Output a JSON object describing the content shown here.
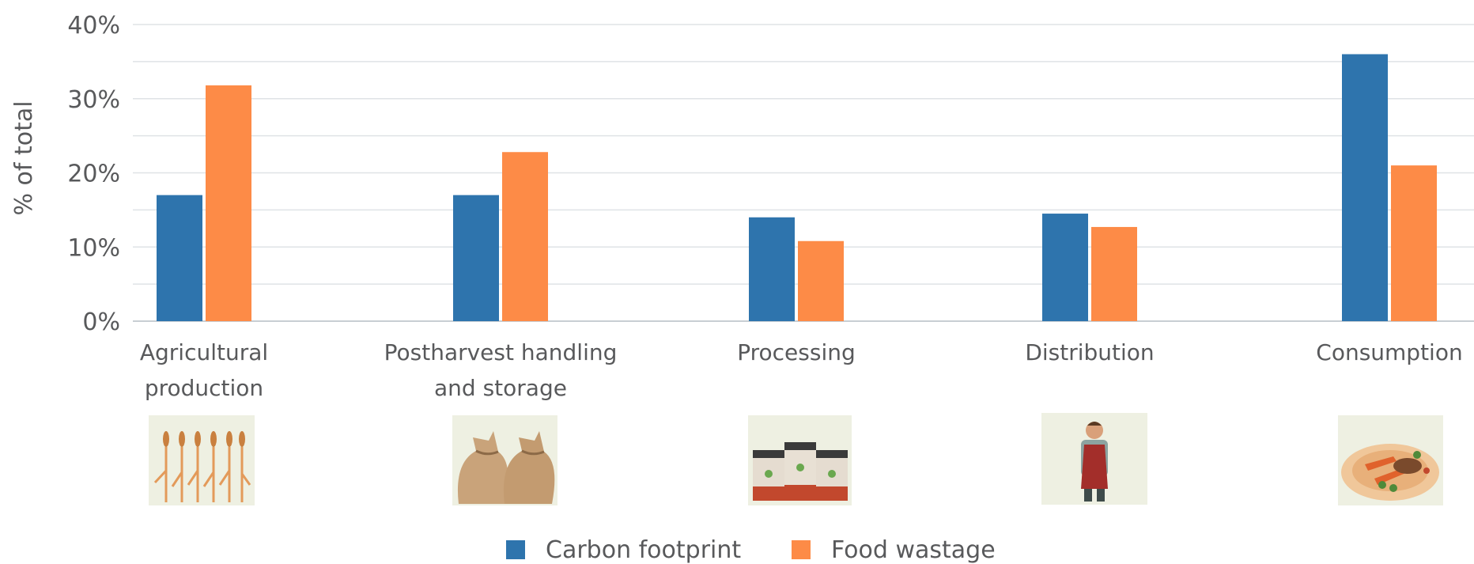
{
  "chart_data": {
    "type": "bar",
    "title": "",
    "xlabel": "",
    "ylabel": "% of total",
    "ylim": [
      0,
      40
    ],
    "yticks": [
      "0%",
      "10%",
      "20%",
      "30%",
      "40%"
    ],
    "ytick_values": [
      0,
      10,
      20,
      30,
      40
    ],
    "grid": true,
    "legend_position": "bottom",
    "categories": [
      [
        "Agricultural",
        "production"
      ],
      [
        "Postharvest handling",
        "and storage"
      ],
      [
        "Processing"
      ],
      [
        "Distribution"
      ],
      [
        "Consumption"
      ]
    ],
    "category_icons": [
      "wheat-icon",
      "grain-sacks-icon",
      "jars-icon",
      "worker-icon",
      "meal-plate-icon"
    ],
    "series": [
      {
        "name": "Carbon footprint",
        "color": "#2e74ad",
        "values": [
          17,
          17,
          14,
          14.5,
          36
        ]
      },
      {
        "name": "Food wastage",
        "color": "#fd8b47",
        "values": [
          31.8,
          22.8,
          10.8,
          12.7,
          21
        ]
      }
    ],
    "gridline_color": "#dfe3e6",
    "axis_color": "#c8ced3"
  }
}
